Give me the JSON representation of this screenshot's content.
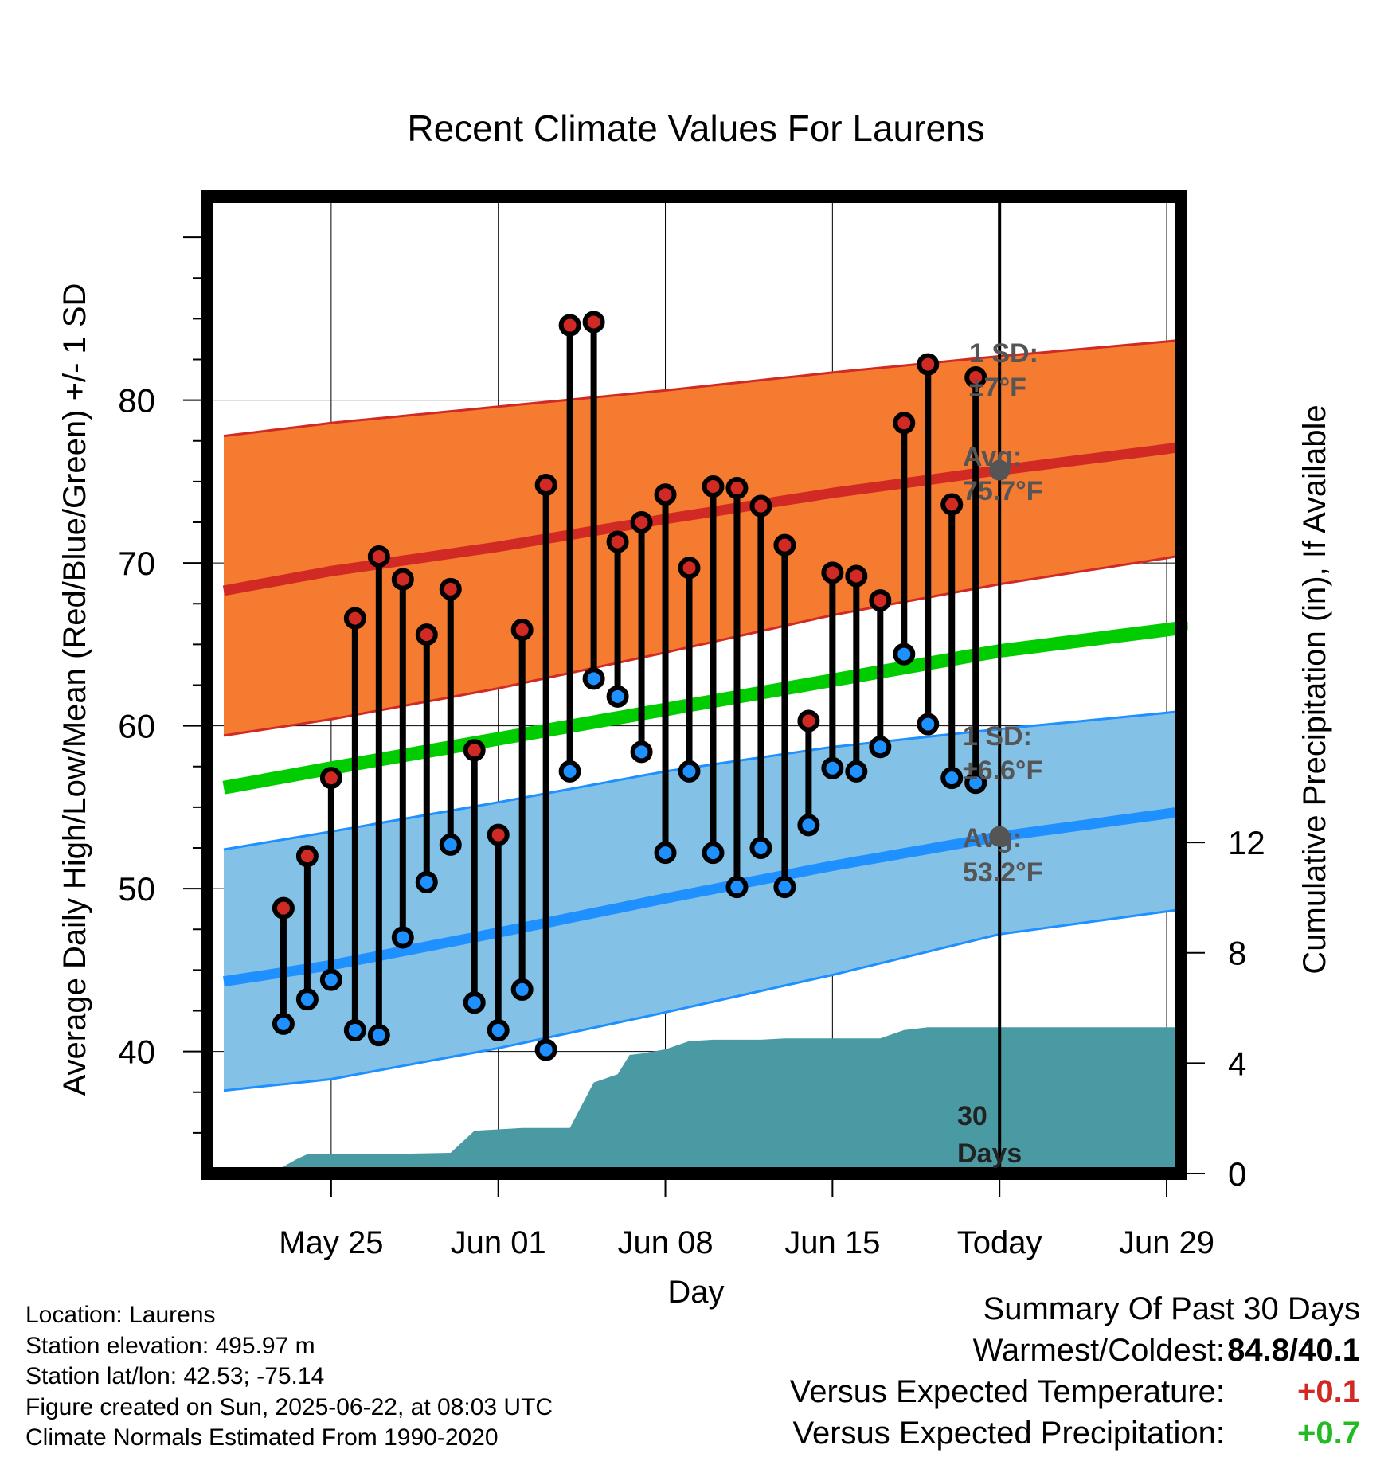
{
  "chart_data": {
    "type": "line",
    "title": "Recent Climate Values For Laurens",
    "xlabel": "Day",
    "ylabel_left": "Average Daily High/Low/Mean (Red/Blue/Green) +/- 1 SD",
    "ylabel_right": "Cumulative Precipitation (in), If Available",
    "ylim_left": [
      32.5,
      92.5
    ],
    "ylim_right": [
      0,
      35.4
    ],
    "left_ticks": [
      40,
      50,
      60,
      70,
      80
    ],
    "right_ticks": [
      0,
      4,
      8,
      12
    ],
    "x_range": [
      -33.2,
      7.6
    ],
    "x_ticks": [
      {
        "offset": -28,
        "label": "May 25"
      },
      {
        "offset": -21,
        "label": "Jun 01"
      },
      {
        "offset": -14,
        "label": "Jun 08"
      },
      {
        "offset": -7,
        "label": "Jun 15"
      },
      {
        "offset": 0,
        "label": "Today"
      },
      {
        "offset": 7,
        "label": "Jun 29"
      }
    ],
    "normals": {
      "offsets": [
        -32.5,
        -28,
        -21,
        -14,
        -7,
        0,
        7,
        9.5
      ],
      "high_avg": [
        68.3,
        69.5,
        71.0,
        72.7,
        74.3,
        75.7,
        77.0,
        77.6
      ],
      "high_upper": [
        77.8,
        78.6,
        79.6,
        80.6,
        81.7,
        82.7,
        83.6,
        84.0
      ],
      "high_lower": [
        59.4,
        60.4,
        62.3,
        64.5,
        66.8,
        68.7,
        70.3,
        71.0
      ],
      "mean_avg": [
        56.2,
        57.4,
        59.2,
        61.0,
        62.8,
        64.6,
        65.9,
        66.4
      ],
      "low_avg": [
        44.3,
        45.3,
        47.3,
        49.4,
        51.4,
        53.2,
        54.6,
        55.1
      ],
      "low_upper": [
        52.4,
        53.5,
        55.3,
        57.2,
        58.7,
        59.8,
        60.8,
        61.2
      ],
      "low_lower": [
        37.6,
        38.3,
        40.2,
        42.4,
        44.7,
        47.2,
        48.6,
        49.1
      ]
    },
    "observed": {
      "offsets": [
        -30,
        -29,
        -28,
        -27,
        -26,
        -25,
        -24,
        -23,
        -22,
        -21,
        -20,
        -19,
        -18,
        -17,
        -16,
        -15,
        -14,
        -13,
        -12,
        -11,
        -10,
        -9,
        -8,
        -7,
        -6,
        -5,
        -4,
        -3,
        -2,
        -1
      ],
      "highs": [
        48.8,
        52.0,
        56.8,
        66.6,
        70.4,
        69.0,
        65.6,
        68.4,
        58.5,
        53.3,
        65.9,
        74.8,
        84.6,
        84.8,
        71.3,
        72.5,
        74.2,
        69.7,
        74.7,
        74.6,
        73.5,
        71.1,
        60.3,
        69.4,
        69.2,
        67.7,
        78.6,
        82.2,
        73.6,
        81.4
      ],
      "lows": [
        41.7,
        43.2,
        44.4,
        41.3,
        41.0,
        47.0,
        50.4,
        52.7,
        43.0,
        41.3,
        43.8,
        40.1,
        57.2,
        62.9,
        61.8,
        58.4,
        52.2,
        57.2,
        52.2,
        50.1,
        52.5,
        50.1,
        53.9,
        57.4,
        57.2,
        58.7,
        64.4,
        60.1,
        56.8,
        56.5
      ]
    },
    "precipitation": {
      "offsets": [
        -30.5,
        -29.5,
        -29,
        -26,
        -23,
        -22,
        -21,
        -20,
        -19,
        -18,
        -17,
        -16,
        -15.5,
        -15,
        -14,
        -13,
        -12,
        -11,
        -10,
        -9,
        -8,
        -7,
        -6,
        -5,
        -4,
        -3.5,
        -3,
        -2,
        9.5
      ],
      "values": [
        0,
        0.5,
        0.7,
        0.7,
        0.75,
        1.55,
        1.6,
        1.65,
        1.65,
        1.65,
        3.3,
        3.6,
        4.3,
        4.35,
        4.5,
        4.8,
        4.85,
        4.85,
        4.85,
        4.9,
        4.9,
        4.9,
        4.9,
        4.9,
        5.2,
        5.25,
        5.3,
        5.3,
        5.3
      ]
    },
    "annotations": {
      "high_sd_1": "1 SD:",
      "high_sd_2": "±7°F",
      "high_avg_1": "Avg:",
      "high_avg_2": "75.7°F",
      "low_sd_1": "1 SD:",
      "low_sd_2": "±6.6°F",
      "low_avg_1": "Avg:",
      "low_avg_2": "53.2°F",
      "period_1": "30",
      "period_2": "Days"
    },
    "today_markers": {
      "high": 75.7,
      "low": 53.2
    },
    "colors": {
      "high_band": "#f47b30",
      "high_line": "#d12a24",
      "mean_line": "#00cc00",
      "low_band": "#84c1e6",
      "low_line": "#1e90ff",
      "precip_fill": "#4a9aa3",
      "high_marker": "#d12a24",
      "low_marker": "#1e90ff",
      "today_marker": "#555555"
    },
    "grid": true
  },
  "info": {
    "location": "Location: Laurens",
    "elevation": "Station elevation: 495.97 m",
    "latlon": "Station lat/lon: 42.53; -75.14",
    "created": "Figure created on Sun, 2025-06-22, at 08:03 UTC",
    "normals": "Climate Normals Estimated From 1990-2020"
  },
  "summary": {
    "heading": "Summary Of Past 30 Days",
    "warm_cold_label": "Warmest/Coldest:",
    "warm_value": "84.8",
    "cold_value": "/40.1",
    "temp_label": "Versus Expected Temperature:",
    "temp_value": "+0.1",
    "precip_label": "Versus Expected Precipitation:",
    "precip_value": "+0.7",
    "temp_color": "#d12a24",
    "precip_color": "#22bb22"
  }
}
